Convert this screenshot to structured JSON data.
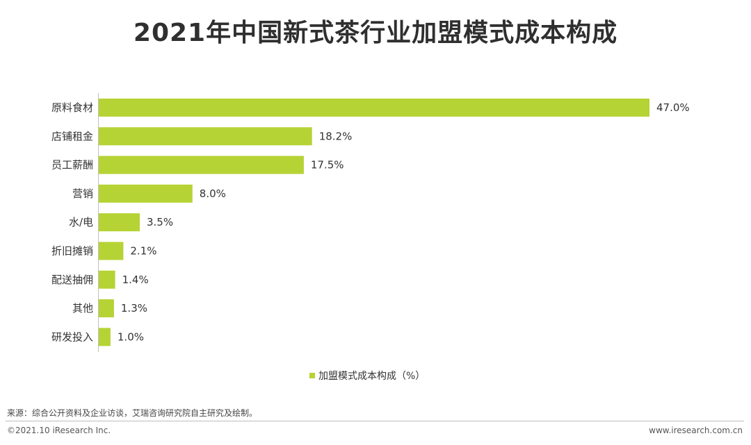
{
  "title": "2021年中国新式茶行业加盟模式成本构成",
  "colors": {
    "bar": "#b5d334",
    "axis": "#bfbfbf",
    "text": "#333333"
  },
  "chart_data": {
    "type": "bar",
    "orientation": "horizontal",
    "categories": [
      "原料食材",
      "店铺租金",
      "员工薪酬",
      "营销",
      "水/电",
      "折旧摊销",
      "配送抽佣",
      "其他",
      "研发投入"
    ],
    "series": [
      {
        "name": "加盟模式成本构成（%）",
        "values": [
          47.0,
          18.2,
          17.5,
          8.0,
          3.5,
          2.1,
          1.4,
          1.3,
          1.0
        ]
      }
    ],
    "value_labels": [
      "47.0%",
      "18.2%",
      "17.5%",
      "8.0%",
      "3.5%",
      "2.1%",
      "1.4%",
      "1.3%",
      "1.0%"
    ],
    "xlim": [
      0,
      47.0
    ],
    "grid": false,
    "legend": "bottom-center"
  },
  "footer": {
    "source": "来源：综合公开资料及企业访谈，艾瑞咨询研究院自主研究及绘制。",
    "copyright": "©2021.10 iResearch Inc.",
    "website": "www.iresearch.com.cn"
  }
}
